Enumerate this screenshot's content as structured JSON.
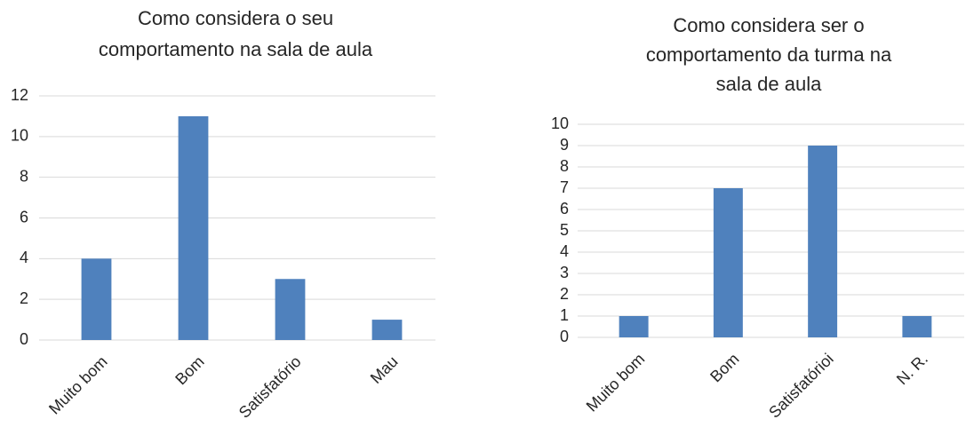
{
  "chart_data": [
    {
      "type": "bar",
      "title": [
        "Como considera o seu",
        "comportamento na sala de aula"
      ],
      "categories": [
        "Muito bom",
        "Bom",
        "Satisfatório",
        "Mau"
      ],
      "values": [
        4,
        11,
        3,
        1
      ],
      "color": "#4f81bd",
      "ylim": [
        0,
        12
      ],
      "yticks": [
        0,
        2,
        4,
        6,
        8,
        10,
        12
      ],
      "grid": true
    },
    {
      "type": "bar",
      "title": [
        "Como considera ser o",
        "comportamento da turma na",
        "sala de aula"
      ],
      "categories": [
        "Muito bom",
        "Bom",
        "Satisfatórioi",
        "N. R."
      ],
      "values": [
        1,
        7,
        9,
        1
      ],
      "color": "#4f81bd",
      "ylim": [
        0,
        10
      ],
      "yticks": [
        0,
        1,
        2,
        3,
        4,
        5,
        6,
        7,
        8,
        9,
        10
      ],
      "grid": true
    }
  ]
}
